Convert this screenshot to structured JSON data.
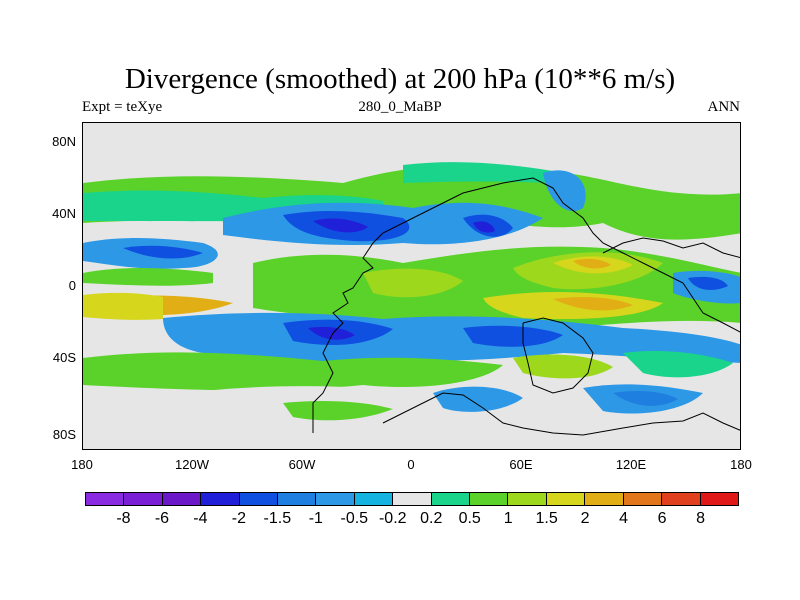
{
  "title": "Divergence (smoothed) at 200 hPa (10**6 m/s)",
  "subtitle_left": "Expt = teXye",
  "subtitle_center": "280_0_MaBP",
  "subtitle_right": "ANN",
  "y_ticks": [
    "80N",
    "40N",
    "0",
    "40S",
    "80S"
  ],
  "x_ticks": [
    "180",
    "120W",
    "60W",
    "0",
    "60E",
    "120E",
    "180"
  ],
  "colorbar": {
    "colors": [
      "#8a2be2",
      "#7a1fd6",
      "#6b18c8",
      "#2020d8",
      "#1050e0",
      "#1f7fe0",
      "#2d98e6",
      "#15b4e0",
      "#e6e6e6",
      "#19d48a",
      "#5ad22a",
      "#9ed81c",
      "#d6d61c",
      "#e2ae16",
      "#e2761a",
      "#e0401e",
      "#e01818"
    ],
    "labels": [
      "-8",
      "-6",
      "-4",
      "-2",
      "-1.5",
      "-1",
      "-0.5",
      "-0.2",
      "0.2",
      "0.5",
      "1",
      "1.5",
      "2",
      "4",
      "6",
      "8"
    ]
  }
}
